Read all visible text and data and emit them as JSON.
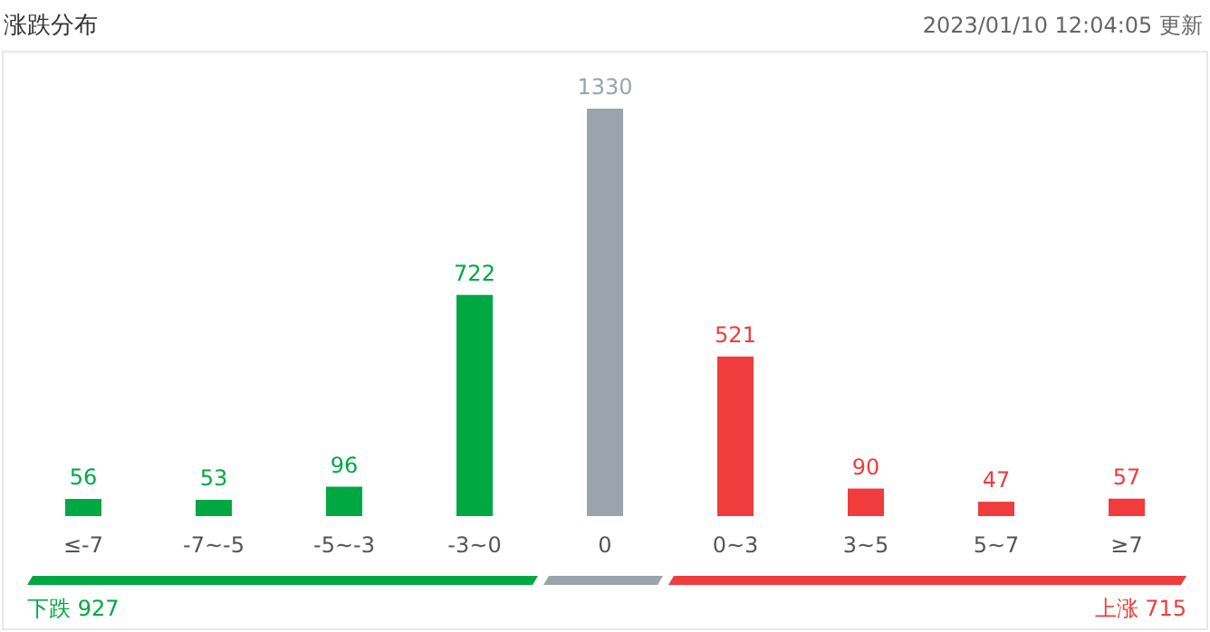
{
  "chart_data": {
    "type": "bar",
    "title": "涨跌分布",
    "categories": [
      "≤-7",
      "-7~-5",
      "-5~-3",
      "-3~0",
      "0",
      "0~3",
      "3~5",
      "5~7",
      "≥7"
    ],
    "values": [
      56,
      53,
      96,
      722,
      1330,
      521,
      90,
      47,
      57
    ],
    "colors": [
      "#00a843",
      "#00a843",
      "#00a843",
      "#00a843",
      "#9ba3ac",
      "#f03c3c",
      "#f03c3c",
      "#f03c3c",
      "#f03c3c"
    ],
    "data_labels": true,
    "annotations": [
      "2023/01/10 12:04:05 更新",
      "下跌 927",
      "上涨 715"
    ]
  }
}
